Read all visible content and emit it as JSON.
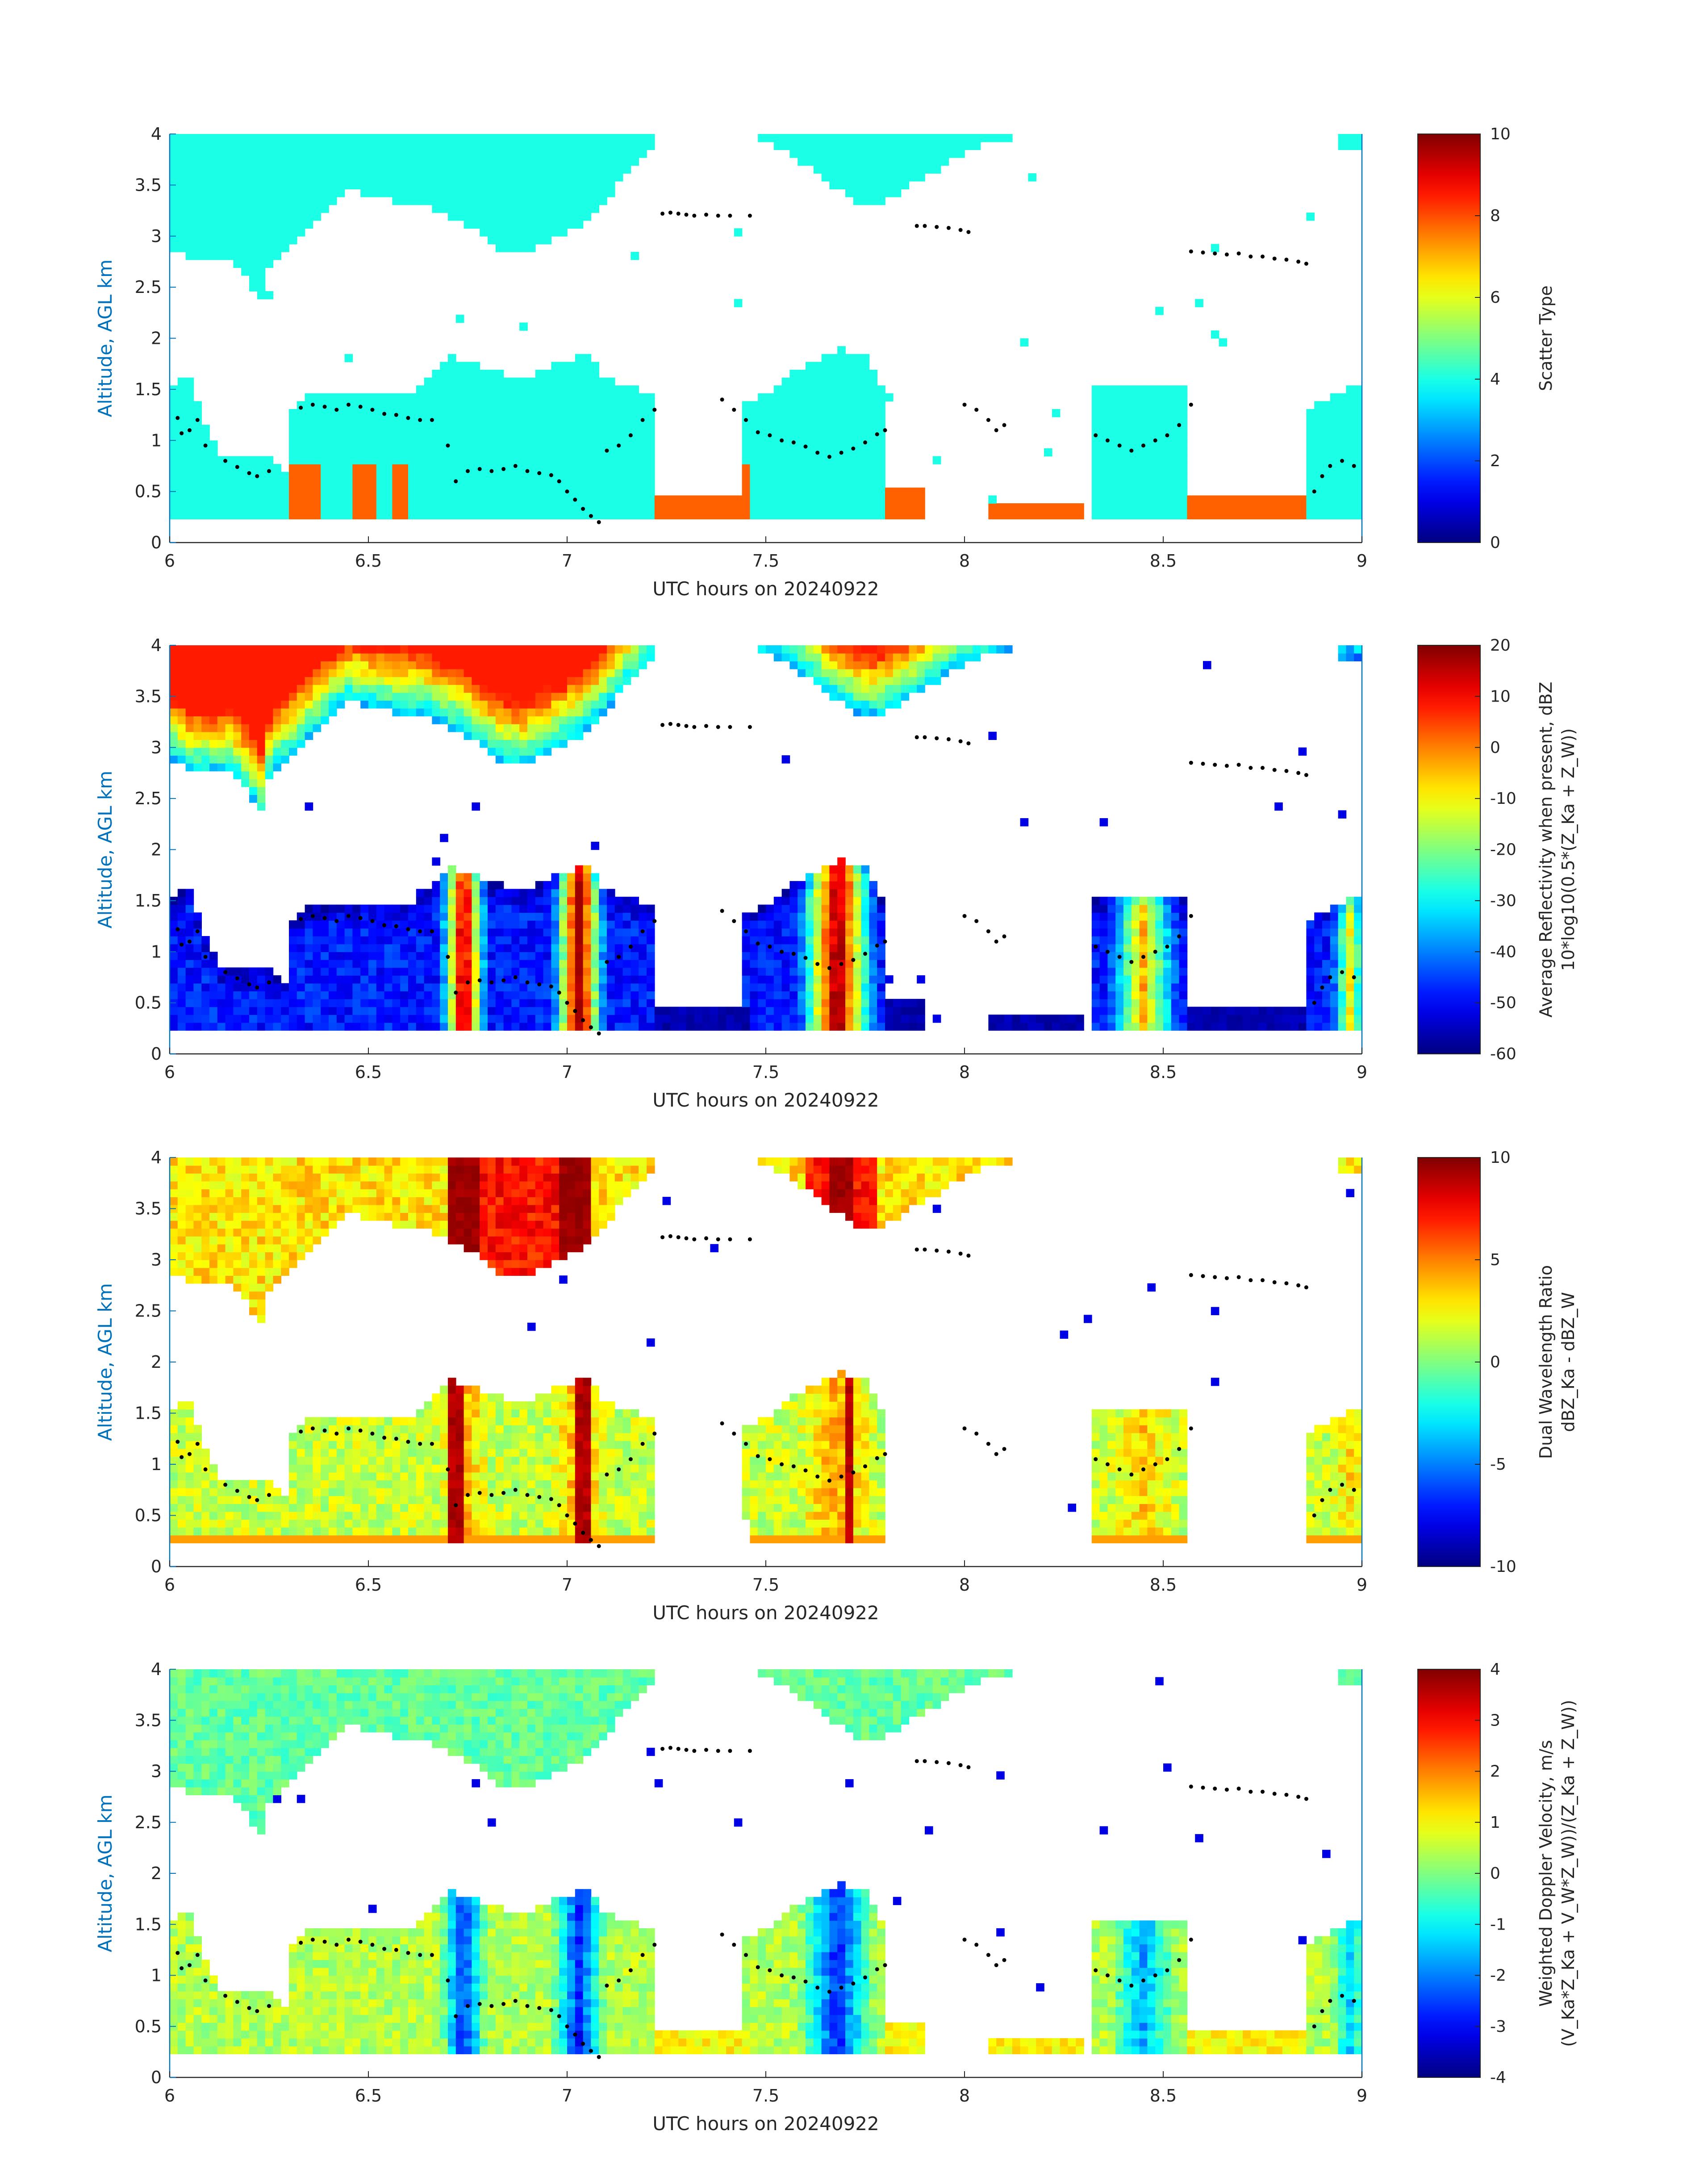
{
  "chart_data": [
    {
      "type": "heatmap",
      "xlabel": "UTC hours on 20240922",
      "ylabel": "Altitude, AGL km",
      "xlim": [
        6,
        9
      ],
      "ylim": [
        0,
        4
      ],
      "xticks": [
        "6",
        "6.5",
        "7",
        "7.5",
        "8",
        "8.5",
        "9"
      ],
      "yticks": [
        "0",
        "0.5",
        "1",
        "1.5",
        "2",
        "2.5",
        "3",
        "3.5",
        "4"
      ],
      "colorbar": {
        "label_lines": [
          "Scatter Type"
        ],
        "range": [
          0,
          10
        ],
        "ticks": [
          "0",
          "2",
          "4",
          "6",
          "8",
          "10"
        ]
      }
    },
    {
      "type": "heatmap",
      "xlabel": "UTC hours on 20240922",
      "ylabel": "Altitude, AGL km",
      "xlim": [
        6,
        9
      ],
      "ylim": [
        0,
        4
      ],
      "xticks": [
        "6",
        "6.5",
        "7",
        "7.5",
        "8",
        "8.5",
        "9"
      ],
      "yticks": [
        "0",
        "0.5",
        "1",
        "1.5",
        "2",
        "2.5",
        "3",
        "3.5",
        "4"
      ],
      "colorbar": {
        "label_lines": [
          "Average Reflectivity when present, dBZ",
          "10*log10(0.5*(Z_Ka + Z_W))"
        ],
        "range": [
          -60,
          20
        ],
        "ticks": [
          "-60",
          "-50",
          "-40",
          "-30",
          "-20",
          "-10",
          "0",
          "10",
          "20"
        ]
      }
    },
    {
      "type": "heatmap",
      "xlabel": "UTC hours on 20240922",
      "ylabel": "Altitude, AGL km",
      "xlim": [
        6,
        9
      ],
      "ylim": [
        0,
        4
      ],
      "xticks": [
        "6",
        "6.5",
        "7",
        "7.5",
        "8",
        "8.5",
        "9"
      ],
      "yticks": [
        "0",
        "0.5",
        "1",
        "1.5",
        "2",
        "2.5",
        "3",
        "3.5",
        "4"
      ],
      "colorbar": {
        "label_lines": [
          "Dual Wavelength Ratio",
          "dBZ_Ka - dBZ_W"
        ],
        "range": [
          -10,
          10
        ],
        "ticks": [
          "-10",
          "-5",
          "0",
          "5",
          "10"
        ]
      }
    },
    {
      "type": "heatmap",
      "xlabel": "UTC hours on 20240922",
      "ylabel": "Altitude, AGL km",
      "xlim": [
        6,
        9
      ],
      "ylim": [
        0,
        4
      ],
      "xticks": [
        "6",
        "6.5",
        "7",
        "7.5",
        "8",
        "8.5",
        "9"
      ],
      "yticks": [
        "0",
        "0.5",
        "1",
        "1.5",
        "2",
        "2.5",
        "3",
        "3.5",
        "4"
      ],
      "colorbar": {
        "label_lines": [
          "Weighted Doppler Velocity, m/s",
          "(V_Ka*Z_Ka + V_W*Z_W))/(Z_Ka + Z_W))"
        ],
        "range": [
          -4,
          4
        ],
        "ticks": [
          "-4",
          "-3",
          "-2",
          "-1",
          "0",
          "1",
          "2",
          "3",
          "4"
        ]
      }
    }
  ],
  "cloud_base_points": [
    [
      6.02,
      1.22
    ],
    [
      6.03,
      1.07
    ],
    [
      6.05,
      1.1
    ],
    [
      6.07,
      1.2
    ],
    [
      6.09,
      0.95
    ],
    [
      6.14,
      0.8
    ],
    [
      6.17,
      0.74
    ],
    [
      6.2,
      0.68
    ],
    [
      6.22,
      0.65
    ],
    [
      6.25,
      0.7
    ],
    [
      6.33,
      1.32
    ],
    [
      6.36,
      1.35
    ],
    [
      6.39,
      1.33
    ],
    [
      6.42,
      1.3
    ],
    [
      6.45,
      1.35
    ],
    [
      6.48,
      1.33
    ],
    [
      6.51,
      1.3
    ],
    [
      6.54,
      1.26
    ],
    [
      6.57,
      1.25
    ],
    [
      6.6,
      1.22
    ],
    [
      6.63,
      1.2
    ],
    [
      6.66,
      1.2
    ],
    [
      6.7,
      0.95
    ],
    [
      6.72,
      0.6
    ],
    [
      6.75,
      0.7
    ],
    [
      6.78,
      0.72
    ],
    [
      6.81,
      0.7
    ],
    [
      6.84,
      0.72
    ],
    [
      6.87,
      0.75
    ],
    [
      6.9,
      0.7
    ],
    [
      6.93,
      0.68
    ],
    [
      6.96,
      0.66
    ],
    [
      6.98,
      0.6
    ],
    [
      7.0,
      0.5
    ],
    [
      7.02,
      0.42
    ],
    [
      7.04,
      0.33
    ],
    [
      7.06,
      0.26
    ],
    [
      7.08,
      0.2
    ],
    [
      7.1,
      0.9
    ],
    [
      7.13,
      0.95
    ],
    [
      7.16,
      1.05
    ],
    [
      7.19,
      1.2
    ],
    [
      7.22,
      1.3
    ],
    [
      7.24,
      3.22
    ],
    [
      7.26,
      3.23
    ],
    [
      7.28,
      3.22
    ],
    [
      7.3,
      3.21
    ],
    [
      7.32,
      3.2
    ],
    [
      7.35,
      3.21
    ],
    [
      7.38,
      3.2
    ],
    [
      7.41,
      3.2
    ],
    [
      7.46,
      3.2
    ],
    [
      7.39,
      1.4
    ],
    [
      7.42,
      1.3
    ],
    [
      7.45,
      1.2
    ],
    [
      7.48,
      1.08
    ],
    [
      7.51,
      1.05
    ],
    [
      7.54,
      1.0
    ],
    [
      7.57,
      0.98
    ],
    [
      7.6,
      0.94
    ],
    [
      7.63,
      0.88
    ],
    [
      7.66,
      0.84
    ],
    [
      7.69,
      0.88
    ],
    [
      7.72,
      0.92
    ],
    [
      7.75,
      0.98
    ],
    [
      7.78,
      1.06
    ],
    [
      7.8,
      1.1
    ],
    [
      7.88,
      3.1
    ],
    [
      7.9,
      3.1
    ],
    [
      7.93,
      3.09
    ],
    [
      7.96,
      3.08
    ],
    [
      7.99,
      3.06
    ],
    [
      8.01,
      3.04
    ],
    [
      8.0,
      1.35
    ],
    [
      8.03,
      1.3
    ],
    [
      8.06,
      1.2
    ],
    [
      8.08,
      1.1
    ],
    [
      8.1,
      1.15
    ],
    [
      8.33,
      1.05
    ],
    [
      8.36,
      1.0
    ],
    [
      8.39,
      0.95
    ],
    [
      8.42,
      0.9
    ],
    [
      8.45,
      0.95
    ],
    [
      8.48,
      1.0
    ],
    [
      8.51,
      1.05
    ],
    [
      8.54,
      1.15
    ],
    [
      8.57,
      1.35
    ],
    [
      8.57,
      2.85
    ],
    [
      8.6,
      2.84
    ],
    [
      8.63,
      2.83
    ],
    [
      8.66,
      2.82
    ],
    [
      8.69,
      2.83
    ],
    [
      8.72,
      2.8
    ],
    [
      8.75,
      2.8
    ],
    [
      8.78,
      2.78
    ],
    [
      8.81,
      2.77
    ],
    [
      8.84,
      2.75
    ],
    [
      8.86,
      2.73
    ],
    [
      8.88,
      0.5
    ],
    [
      8.9,
      0.65
    ],
    [
      8.92,
      0.75
    ],
    [
      8.95,
      0.8
    ],
    [
      8.98,
      0.75
    ]
  ]
}
